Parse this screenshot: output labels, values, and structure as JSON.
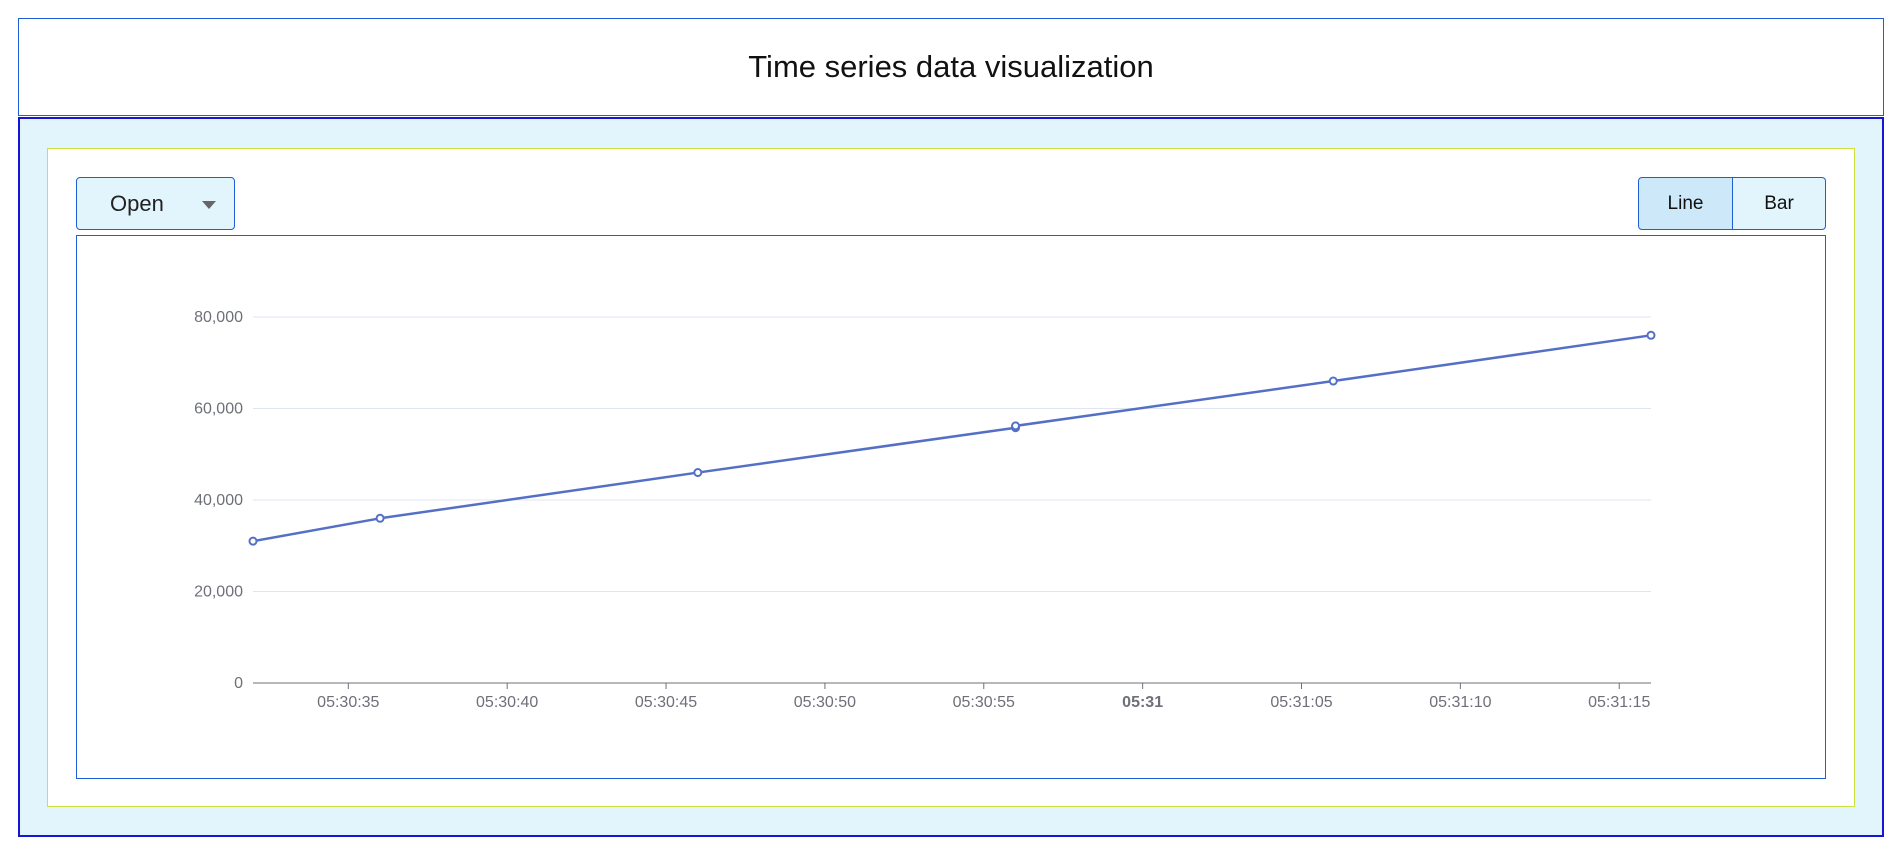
{
  "header": {
    "title": "Time series data visualization"
  },
  "controls": {
    "series_select": {
      "selected": "Open",
      "icon": "chevron-down-icon"
    },
    "chart_type_toggle": {
      "options": [
        "Line",
        "Bar"
      ],
      "selected": "Line"
    }
  },
  "colors": {
    "accent_border": "#1f5fd6",
    "outer_border": "#1515d6",
    "inner_border": "#cfe13a",
    "panel_background": "#e2f4fc",
    "series_line": "#5470c6",
    "grid": "#e0e6f1"
  },
  "chart_data": {
    "type": "line",
    "title": "",
    "xlabel": "",
    "ylabel": "",
    "x_axis_type": "time",
    "x_range": [
      "05:30:32",
      "05:31:16"
    ],
    "ylim": [
      0,
      80000
    ],
    "y_ticks": [
      0,
      20000,
      40000,
      60000,
      80000
    ],
    "y_tick_labels": [
      "0",
      "20,000",
      "40,000",
      "60,000",
      "80,000"
    ],
    "x_ticks": [
      "05:30:35",
      "05:30:40",
      "05:30:45",
      "05:30:50",
      "05:30:55",
      "05:31:00",
      "05:31:05",
      "05:31:10",
      "05:31:15"
    ],
    "x_tick_labels": [
      "05:30:35",
      "05:30:40",
      "05:30:45",
      "05:30:50",
      "05:30:55",
      "05:31",
      "05:31:05",
      "05:31:10",
      "05:31:15"
    ],
    "x_tick_bold": [
      false,
      false,
      false,
      false,
      false,
      true,
      false,
      false,
      false
    ],
    "grid": true,
    "legend": "none",
    "series": [
      {
        "x": [
          "05:30:32",
          "05:30:36",
          "05:30:46",
          "05:30:56",
          "05:30:56",
          "05:30:56",
          "05:31:06",
          "05:31:16"
        ],
        "values": [
          31000,
          36000,
          46000,
          55800,
          56000,
          56200,
          66000,
          76000
        ]
      }
    ]
  }
}
